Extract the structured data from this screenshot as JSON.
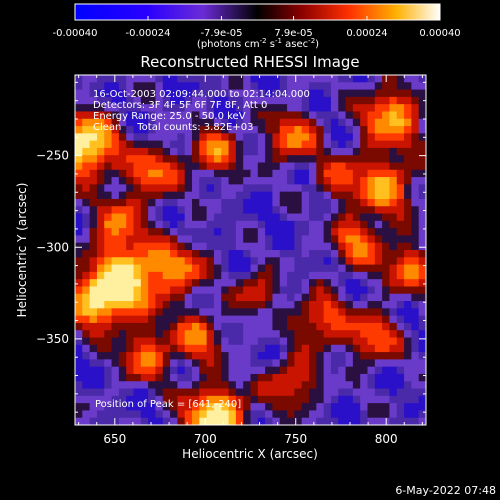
{
  "colorbar": {
    "ticks": [
      "-0.00040",
      "-0.00024",
      "-7.9e-05",
      "7.9e-05",
      "0.00024",
      "0.00040"
    ],
    "tick_values": [
      -0.0004,
      -0.00024,
      -7.9e-05,
      7.9e-05,
      0.00024,
      0.0004
    ],
    "range": [
      -0.0004,
      0.0004
    ],
    "units_prefix": "(photons cm",
    "units_exp1": "-2",
    "units_mid": " s",
    "units_exp2": "-1",
    "units_mid2": " asec",
    "units_exp3": "-2",
    "units_suffix": ")"
  },
  "chart_data": {
    "type": "heatmap",
    "title": "Reconstructed RHESSI Image",
    "xlabel": "Heliocentric X (arcsec)",
    "ylabel": "Heliocentric Y (arcsec)",
    "xlim": [
      628,
      822
    ],
    "ylim": [
      -397,
      -206
    ],
    "xticks": [
      650,
      700,
      750,
      800
    ],
    "yticks": [
      -250,
      -300,
      -350
    ],
    "annotations": [
      "16-Oct-2003 02:09:44.000 to 02:14:04.000",
      "Detectors: 3F 4F 5F 6F 7F 8F, Att 0",
      "Energy Range: 25.0 - 50.0 keV",
      "Clean     Total counts: 3.82E+03"
    ],
    "peak_label": "Position of Peak = [641,-240]",
    "peak": [
      641,
      -240
    ]
  },
  "footer": {
    "timestamp": "6-May-2022 07:48"
  }
}
